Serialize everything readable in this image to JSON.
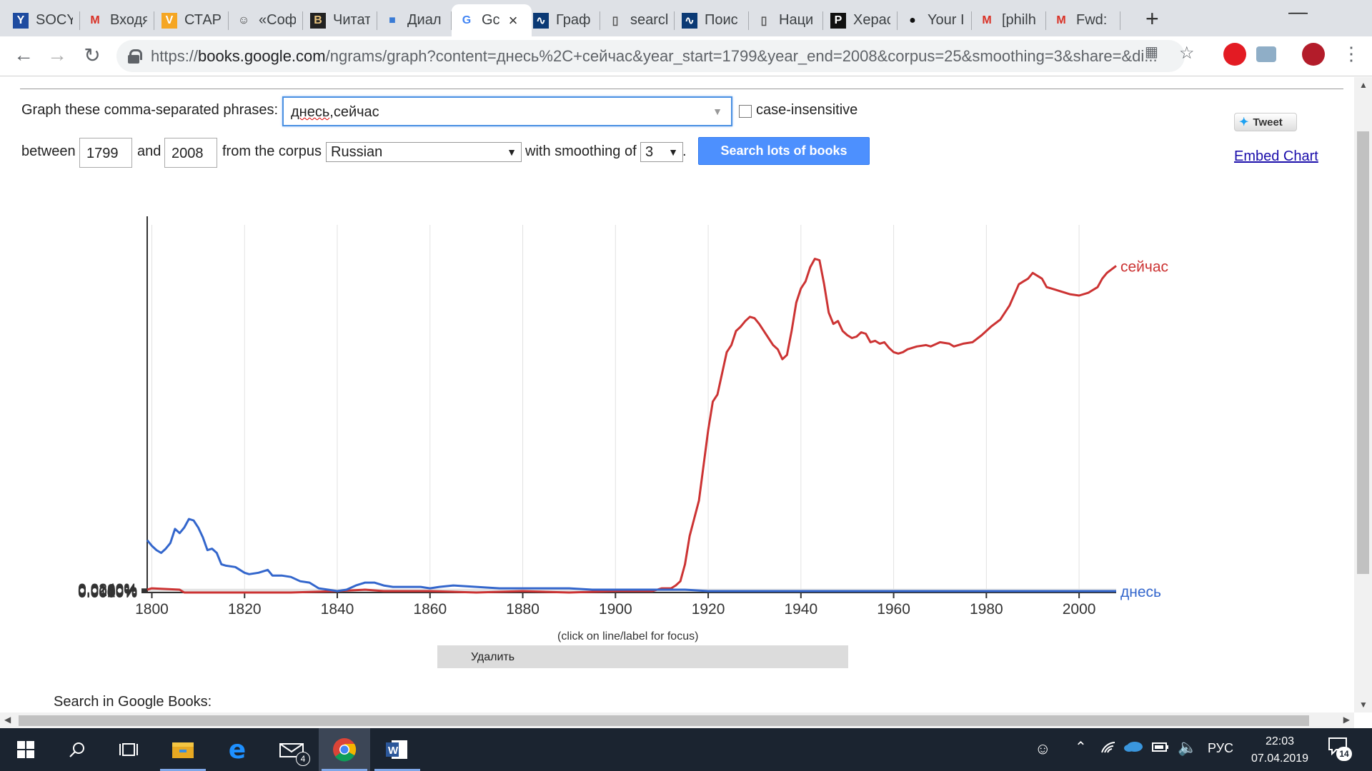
{
  "tabs": [
    {
      "title": "SOCY",
      "icon": "Y"
    },
    {
      "title": "Входя",
      "icon": "M"
    },
    {
      "title": "СТАРІ",
      "icon": "V"
    },
    {
      "title": "«Соф",
      "icon": "avatar"
    },
    {
      "title": "Читат",
      "icon": "B"
    },
    {
      "title": "Диал",
      "icon": "chat"
    },
    {
      "title": "Gc",
      "icon": "G",
      "active": true
    },
    {
      "title": "Граф",
      "icon": "wave"
    },
    {
      "title": "searcl",
      "icon": "doc"
    },
    {
      "title": "Поис",
      "icon": "wave"
    },
    {
      "title": "Наци",
      "icon": "doc"
    },
    {
      "title": "Херас",
      "icon": "P"
    },
    {
      "title": "Your I",
      "icon": "github"
    },
    {
      "title": "[philh",
      "icon": "M"
    },
    {
      "title": "Fwd:",
      "icon": "M"
    }
  ],
  "url": {
    "scheme": "https://",
    "host": "books.google.com",
    "rest": "/ngrams/graph?content=днесь%2C+сейчас&year_start=1799&year_end=2008&corpus=25&smoothing=3&share=&di..."
  },
  "form": {
    "phrases_label": "Graph these comma-separated phrases:",
    "phrase_word1": "днесь",
    "phrase_word2": ",сейчас",
    "case_label": "case-insensitive",
    "between_label": "between",
    "year_start": "1799",
    "and_label": "and",
    "year_end": "2008",
    "corpus_label": "from the corpus",
    "corpus": "Russian",
    "smoothing_label": "with smoothing of",
    "smoothing": "3",
    "period": ".",
    "search_button": "Search lots of books"
  },
  "share": {
    "tweet": "Tweet",
    "embed": "Embed Chart"
  },
  "chart_data": {
    "type": "line",
    "xlabel": "",
    "ylabel": "",
    "xlim": [
      1799,
      2008
    ],
    "ylim": [
      0,
      0.026
    ],
    "x_ticks": [
      "1800",
      "1820",
      "1840",
      "1860",
      "1880",
      "1900",
      "1920",
      "1940",
      "1960",
      "1980",
      "2000"
    ],
    "y_ticks": [
      "0.0000%",
      "0.0020%",
      "0.0040%",
      "0.0060%",
      "0.0080%",
      "0.0100%",
      "0.0120%",
      "0.0140%",
      "0.0160%",
      "0.0180%",
      "0.0200%",
      "0.0220%",
      "0.0240%"
    ],
    "grid": true,
    "series": [
      {
        "name": "сейчас",
        "color": "#cc3333",
        "points": [
          [
            1799,
            0.0002
          ],
          [
            1800,
            0.0003
          ],
          [
            1806,
            0.0002
          ],
          [
            1807,
            0.0
          ],
          [
            1830,
            0.0
          ],
          [
            1840,
            0.0001
          ],
          [
            1846,
            0.0002
          ],
          [
            1850,
            0.0001
          ],
          [
            1860,
            0.0001
          ],
          [
            1870,
            0.0
          ],
          [
            1880,
            0.0001
          ],
          [
            1890,
            0.0
          ],
          [
            1900,
            0.0001
          ],
          [
            1908,
            0.0001
          ],
          [
            1910,
            0.0003
          ],
          [
            1912,
            0.0003
          ],
          [
            1913,
            0.0005
          ],
          [
            1914,
            0.0008
          ],
          [
            1915,
            0.002
          ],
          [
            1916,
            0.004
          ],
          [
            1918,
            0.0065
          ],
          [
            1919,
            0.009
          ],
          [
            1920,
            0.0115
          ],
          [
            1921,
            0.0135
          ],
          [
            1922,
            0.014
          ],
          [
            1923,
            0.0155
          ],
          [
            1924,
            0.017
          ],
          [
            1925,
            0.0175
          ],
          [
            1926,
            0.0185
          ],
          [
            1927,
            0.0188
          ],
          [
            1928,
            0.0192
          ],
          [
            1929,
            0.0195
          ],
          [
            1930,
            0.0194
          ],
          [
            1931,
            0.019
          ],
          [
            1932,
            0.0185
          ],
          [
            1933,
            0.018
          ],
          [
            1934,
            0.0175
          ],
          [
            1935,
            0.0172
          ],
          [
            1936,
            0.0165
          ],
          [
            1937,
            0.0168
          ],
          [
            1938,
            0.0185
          ],
          [
            1939,
            0.0205
          ],
          [
            1940,
            0.0215
          ],
          [
            1941,
            0.022
          ],
          [
            1942,
            0.023
          ],
          [
            1943,
            0.0236
          ],
          [
            1944,
            0.0235
          ],
          [
            1945,
            0.0218
          ],
          [
            1946,
            0.0198
          ],
          [
            1947,
            0.019
          ],
          [
            1948,
            0.0192
          ],
          [
            1949,
            0.0185
          ],
          [
            1950,
            0.0182
          ],
          [
            1951,
            0.018
          ],
          [
            1952,
            0.0181
          ],
          [
            1953,
            0.0184
          ],
          [
            1954,
            0.0183
          ],
          [
            1955,
            0.0177
          ],
          [
            1956,
            0.0178
          ],
          [
            1957,
            0.0176
          ],
          [
            1958,
            0.0177
          ],
          [
            1959,
            0.0173
          ],
          [
            1960,
            0.017
          ],
          [
            1961,
            0.0169
          ],
          [
            1962,
            0.017
          ],
          [
            1963,
            0.0172
          ],
          [
            1965,
            0.0174
          ],
          [
            1967,
            0.0175
          ],
          [
            1968,
            0.0174
          ],
          [
            1970,
            0.0177
          ],
          [
            1972,
            0.0176
          ],
          [
            1973,
            0.0174
          ],
          [
            1975,
            0.0176
          ],
          [
            1977,
            0.0177
          ],
          [
            1979,
            0.0182
          ],
          [
            1981,
            0.0188
          ],
          [
            1983,
            0.0193
          ],
          [
            1985,
            0.0203
          ],
          [
            1987,
            0.0218
          ],
          [
            1988,
            0.022
          ],
          [
            1989,
            0.0222
          ],
          [
            1990,
            0.0226
          ],
          [
            1991,
            0.0224
          ],
          [
            1992,
            0.0222
          ],
          [
            1993,
            0.0216
          ],
          [
            1994,
            0.0215
          ],
          [
            1995,
            0.0214
          ],
          [
            1996,
            0.0213
          ],
          [
            1997,
            0.0212
          ],
          [
            1998,
            0.0211
          ],
          [
            2000,
            0.021
          ],
          [
            2002,
            0.0212
          ],
          [
            2004,
            0.0216
          ],
          [
            2005,
            0.0222
          ],
          [
            2006,
            0.0226
          ],
          [
            2008,
            0.0231
          ]
        ]
      },
      {
        "name": "днесь",
        "color": "#3366cc",
        "points": [
          [
            1799,
            0.0037
          ],
          [
            1800,
            0.0033
          ],
          [
            1801,
            0.003
          ],
          [
            1802,
            0.0028
          ],
          [
            1803,
            0.0031
          ],
          [
            1804,
            0.0035
          ],
          [
            1805,
            0.0045
          ],
          [
            1806,
            0.0042
          ],
          [
            1807,
            0.0046
          ],
          [
            1808,
            0.0052
          ],
          [
            1809,
            0.0051
          ],
          [
            1810,
            0.0046
          ],
          [
            1811,
            0.0039
          ],
          [
            1812,
            0.003
          ],
          [
            1813,
            0.0031
          ],
          [
            1814,
            0.0028
          ],
          [
            1815,
            0.002
          ],
          [
            1816,
            0.0019
          ],
          [
            1818,
            0.0018
          ],
          [
            1819,
            0.0016
          ],
          [
            1820,
            0.0014
          ],
          [
            1821,
            0.0013
          ],
          [
            1823,
            0.0014
          ],
          [
            1825,
            0.0016
          ],
          [
            1826,
            0.0012
          ],
          [
            1828,
            0.0012
          ],
          [
            1830,
            0.0011
          ],
          [
            1832,
            0.0008
          ],
          [
            1834,
            0.0007
          ],
          [
            1836,
            0.0003
          ],
          [
            1838,
            0.0002
          ],
          [
            1840,
            0.0001
          ],
          [
            1842,
            0.0002
          ],
          [
            1844,
            0.0005
          ],
          [
            1846,
            0.0007
          ],
          [
            1848,
            0.0007
          ],
          [
            1850,
            0.0005
          ],
          [
            1852,
            0.0004
          ],
          [
            1855,
            0.0004
          ],
          [
            1858,
            0.0004
          ],
          [
            1860,
            0.0003
          ],
          [
            1862,
            0.0004
          ],
          [
            1865,
            0.0005
          ],
          [
            1870,
            0.0004
          ],
          [
            1875,
            0.0003
          ],
          [
            1880,
            0.0003
          ],
          [
            1885,
            0.0003
          ],
          [
            1890,
            0.0003
          ],
          [
            1895,
            0.0002
          ],
          [
            1900,
            0.0002
          ],
          [
            1905,
            0.0002
          ],
          [
            1910,
            0.0002
          ],
          [
            1915,
            0.0002
          ],
          [
            1920,
            0.0001
          ],
          [
            1930,
            0.0001
          ],
          [
            1940,
            0.0001
          ],
          [
            1950,
            0.0001
          ],
          [
            1960,
            0.0001
          ],
          [
            1970,
            0.0001
          ],
          [
            1980,
            0.0001
          ],
          [
            1990,
            0.0001
          ],
          [
            2000,
            0.0001
          ],
          [
            2008,
            0.0001
          ]
        ]
      }
    ]
  },
  "chart_hint": "(click on line/label for focus)",
  "delete_label": "Удалить",
  "search_books_label": "Search in Google Books:",
  "taskbar": {
    "lang": "РУС",
    "time": "22:03",
    "date": "07.04.2019",
    "mail_badge": "4",
    "notif_badge": "14"
  }
}
